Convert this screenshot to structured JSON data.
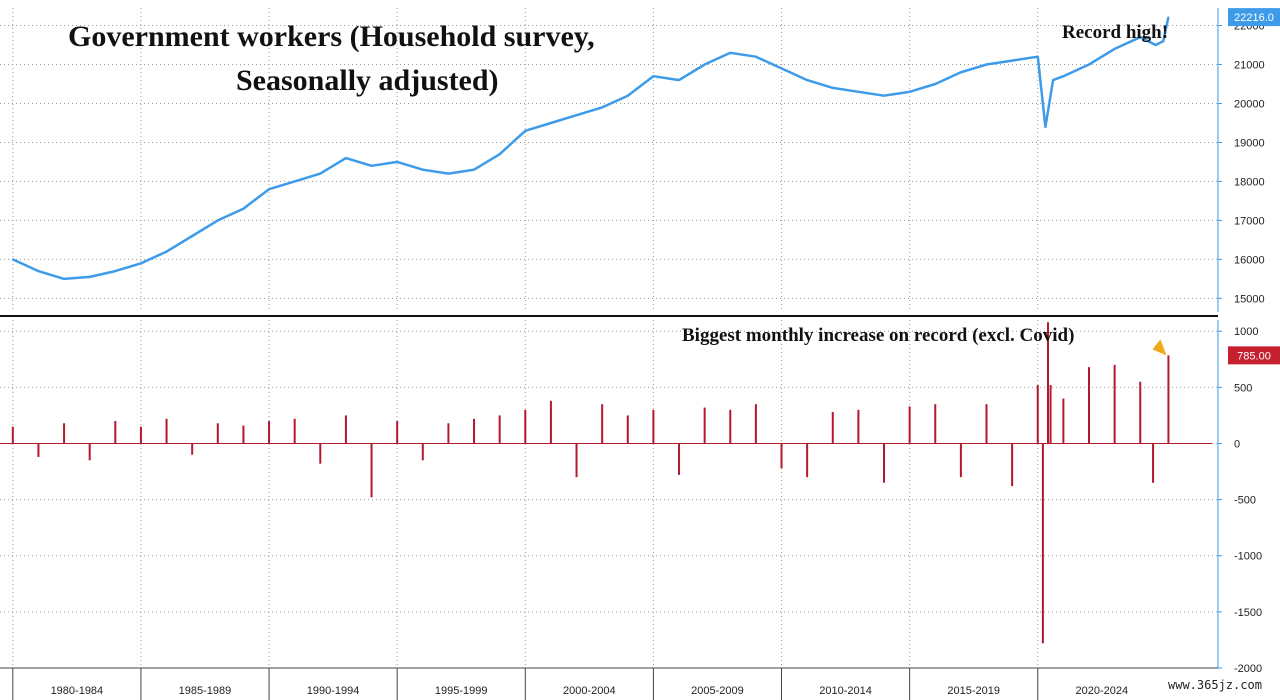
{
  "chart_data": [
    {
      "type": "line",
      "title": "Government workers (Household survey,",
      "subtitle": "Seasonally adjusted)",
      "annotation": "Record high!",
      "last_value_label": "22216.0",
      "ylim": [
        14650,
        22450
      ],
      "yticks": [
        15000,
        16000,
        17000,
        18000,
        19000,
        20000,
        21000,
        22000
      ],
      "color": "#3d9be9",
      "x_range": [
        1979.5,
        2026.8
      ],
      "x": [
        1980,
        1981,
        1982,
        1983,
        1984,
        1985,
        1986,
        1987,
        1988,
        1989,
        1990,
        1991,
        1992,
        1993,
        1994,
        1995,
        1996,
        1997,
        1998,
        1999,
        2000,
        2001,
        2002,
        2003,
        2004,
        2005,
        2006,
        2007,
        2008,
        2009,
        2010,
        2011,
        2012,
        2013,
        2014,
        2015,
        2016,
        2017,
        2018,
        2019,
        2020,
        2020.3,
        2020.6,
        2021,
        2022,
        2023,
        2024,
        2024.6,
        2024.9,
        2025.1
      ],
      "values": [
        16000,
        15700,
        15500,
        15550,
        15700,
        15900,
        16200,
        16600,
        17000,
        17300,
        17800,
        18000,
        18200,
        18600,
        18400,
        18500,
        18300,
        18200,
        18300,
        18700,
        19300,
        19500,
        19700,
        19900,
        20200,
        20700,
        20600,
        21000,
        21300,
        21200,
        20900,
        20600,
        20400,
        20300,
        20200,
        20300,
        20500,
        20800,
        21000,
        21100,
        21200,
        19400,
        20600,
        20700,
        21000,
        21400,
        21700,
        21500,
        21600,
        22216
      ]
    },
    {
      "type": "bar",
      "annotation": "Biggest monthly increase on record (excl. Covid)",
      "last_value_label": "785.00",
      "ylim": [
        -2000,
        1100
      ],
      "yticks": [
        1000,
        500,
        0,
        -500,
        -1000,
        -1500,
        -2000
      ],
      "color": "#b5182b",
      "x_range": [
        1979.5,
        2026.8
      ],
      "x": [
        1980,
        1981,
        1982,
        1983,
        1984,
        1985,
        1986,
        1987,
        1988,
        1989,
        1990,
        1991,
        1992,
        1993,
        1994,
        1995,
        1996,
        1997,
        1998,
        1999,
        2000,
        2001,
        2002,
        2003,
        2004,
        2005,
        2006,
        2007,
        2008,
        2009,
        2010,
        2011,
        2012,
        2013,
        2014,
        2015,
        2016,
        2017,
        2018,
        2019,
        2020,
        2020.2,
        2020.4,
        2020.5,
        2021,
        2022,
        2023,
        2024,
        2024.5,
        2025.1
      ],
      "values": [
        150,
        -120,
        180,
        -150,
        200,
        150,
        220,
        -100,
        180,
        160,
        200,
        220,
        -180,
        250,
        -480,
        200,
        -150,
        180,
        220,
        250,
        300,
        380,
        -300,
        350,
        250,
        300,
        -280,
        320,
        300,
        350,
        -220,
        -300,
        280,
        300,
        -350,
        330,
        350,
        -300,
        350,
        -380,
        520,
        -1780,
        1080,
        520,
        400,
        680,
        700,
        550,
        -350,
        785
      ],
      "xlabels": [
        "1980-1984",
        "1985-1989",
        "1990-1994",
        "1995-1999",
        "2000-2004",
        "2005-2009",
        "2010-2014",
        "2015-2019",
        "2020-2024"
      ]
    }
  ],
  "watermark": "www.365jz.com"
}
